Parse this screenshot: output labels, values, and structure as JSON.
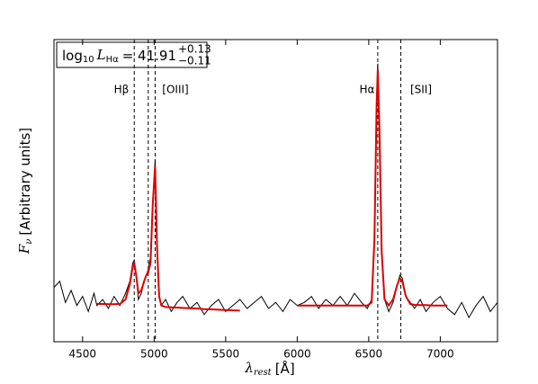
{
  "chart_data": {
    "type": "line",
    "annotation": {
      "base": "log",
      "base_sub": "10",
      "var": "L",
      "var_sub": "Hα",
      "eq": "= 41.91",
      "sup": "+0.13",
      "sub": "−0.11"
    },
    "xlabel": {
      "main": "λ",
      "sub": "rest",
      "unit": "[Å]"
    },
    "ylabel": {
      "main": "F",
      "sub": "ν",
      "unit": "[Arbitrary units]"
    },
    "line_labels": [
      "Hβ",
      "[OIII]",
      "Hα",
      "[SII]"
    ],
    "vlines": [
      4861,
      4959,
      5007,
      6563,
      6724
    ],
    "x": [
      4300,
      4340,
      4380,
      4420,
      4460,
      4500,
      4540,
      4580,
      4600,
      4640,
      4680,
      4720,
      4760,
      4800,
      4830,
      4850,
      4861,
      4875,
      4890,
      4910,
      4930,
      4945,
      4959,
      4975,
      4990,
      5007,
      5020,
      5035,
      5050,
      5080,
      5120,
      5160,
      5200,
      5250,
      5300,
      5350,
      5400,
      5450,
      5500,
      5550,
      5600,
      5650,
      5700,
      5750,
      5800,
      5850,
      5900,
      5950,
      6000,
      6050,
      6100,
      6150,
      6200,
      6250,
      6300,
      6350,
      6400,
      6450,
      6490,
      6520,
      6540,
      6555,
      6563,
      6575,
      6590,
      6610,
      6640,
      6670,
      6700,
      6717,
      6735,
      6760,
      6790,
      6820,
      6860,
      6900,
      6950,
      7000,
      7050,
      7100,
      7150,
      7200,
      7250,
      7300,
      7350,
      7400
    ],
    "series": [
      {
        "color": "#000000",
        "values": [
          0.18,
          0.2,
          0.13,
          0.17,
          0.12,
          0.15,
          0.1,
          0.16,
          0.12,
          0.14,
          0.11,
          0.15,
          0.12,
          0.16,
          0.2,
          0.26,
          0.27,
          0.22,
          0.14,
          0.16,
          0.2,
          0.22,
          0.24,
          0.28,
          0.45,
          0.6,
          0.3,
          0.15,
          0.12,
          0.14,
          0.1,
          0.13,
          0.15,
          0.11,
          0.13,
          0.09,
          0.12,
          0.14,
          0.1,
          0.12,
          0.14,
          0.11,
          0.13,
          0.15,
          0.11,
          0.13,
          0.1,
          0.14,
          0.12,
          0.13,
          0.15,
          0.11,
          0.14,
          0.12,
          0.15,
          0.12,
          0.16,
          0.13,
          0.11,
          0.14,
          0.35,
          0.8,
          0.92,
          0.7,
          0.3,
          0.14,
          0.1,
          0.13,
          0.19,
          0.22,
          0.21,
          0.15,
          0.13,
          0.11,
          0.14,
          0.1,
          0.13,
          0.15,
          0.11,
          0.09,
          0.13,
          0.08,
          0.12,
          0.15,
          0.1,
          0.13
        ]
      },
      {
        "color": "#dd0000",
        "values": [
          null,
          null,
          null,
          null,
          null,
          null,
          null,
          null,
          0.125,
          0.125,
          0.124,
          0.124,
          0.125,
          0.14,
          0.19,
          0.25,
          0.26,
          0.22,
          0.16,
          0.17,
          0.2,
          0.22,
          0.23,
          0.26,
          0.45,
          0.58,
          0.32,
          0.15,
          0.12,
          0.115,
          0.114,
          0.113,
          0.112,
          0.111,
          0.11,
          0.108,
          0.107,
          0.106,
          0.105,
          0.104,
          0.103,
          null,
          null,
          null,
          null,
          null,
          null,
          null,
          0.12,
          0.12,
          0.12,
          0.12,
          0.12,
          0.12,
          0.12,
          0.12,
          0.12,
          0.12,
          0.12,
          0.13,
          0.34,
          0.78,
          0.9,
          0.7,
          0.3,
          0.14,
          0.12,
          0.14,
          0.19,
          0.21,
          0.2,
          0.15,
          0.125,
          0.122,
          0.121,
          0.121,
          0.12,
          0.12,
          0.12,
          null,
          null,
          null,
          null,
          null,
          null,
          null
        ]
      }
    ],
    "xlim": [
      4300,
      7400
    ],
    "ylim": [
      0,
      1
    ],
    "xticks": [
      4500,
      5000,
      5500,
      6000,
      6500,
      7000
    ]
  }
}
